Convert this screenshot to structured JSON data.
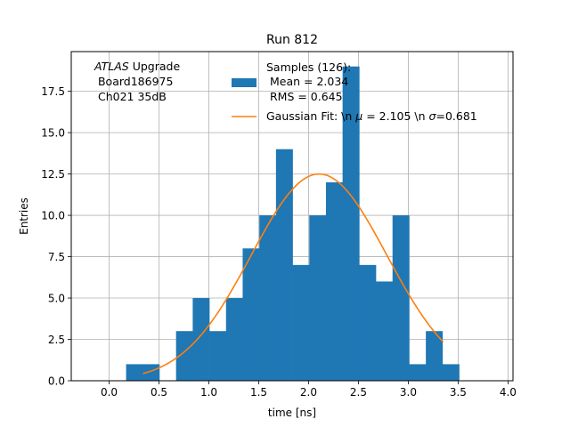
{
  "chart_data": {
    "type": "bar",
    "title": "Run 812",
    "xlabel": "time [ns]",
    "ylabel": "Entries",
    "xlim": [
      -0.38,
      4.05
    ],
    "ylim": [
      0,
      19.9
    ],
    "xticks": [
      "0.0",
      "0.5",
      "1.0",
      "1.5",
      "2.0",
      "2.5",
      "3.0",
      "3.5",
      "4.0"
    ],
    "yticks": [
      "0.0",
      "2.5",
      "5.0",
      "7.5",
      "10.0",
      "12.5",
      "15.0",
      "17.5"
    ],
    "grid": true,
    "annotation": {
      "line1_italic": "ATLAS",
      "line1_rest": " Upgrade",
      "line2": " Board186975",
      "line3": " Ch021 35dB"
    },
    "histogram": {
      "name": "Samples (126):",
      "legend_lines": [
        "Samples (126):",
        " Mean = 2.034",
        " RMS = 0.645"
      ],
      "color": "#1f77b4",
      "bin_edges": [
        0.17,
        0.337,
        0.504,
        0.671,
        0.838,
        1.005,
        1.172,
        1.339,
        1.506,
        1.673,
        1.84,
        2.007,
        2.174,
        2.341,
        2.508,
        2.675,
        2.842,
        3.009,
        3.176,
        3.343,
        3.51
      ],
      "counts": [
        1,
        1,
        0,
        3,
        5,
        3,
        5,
        8,
        10,
        14,
        7,
        10,
        12,
        19,
        7,
        6,
        10,
        1,
        3,
        1
      ]
    },
    "fit": {
      "name_prefix": "Gaussian Fit: \\n ",
      "mu_symbol": "μ",
      "mu_value": " = 2.105 \\n ",
      "sigma_symbol": "σ",
      "sigma_value": "=0.681",
      "color": "#ff7f0e",
      "amplitude": 12.5,
      "mu": 2.105,
      "sigma": 0.681,
      "x_range": [
        0.34,
        3.35
      ]
    },
    "legend_position": "top-right"
  }
}
